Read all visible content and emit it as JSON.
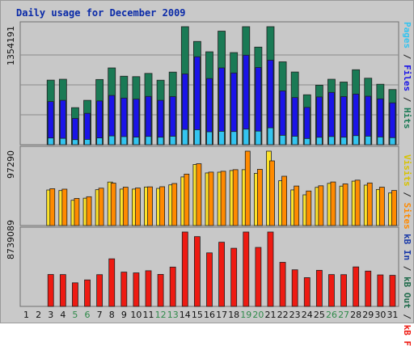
{
  "title": "Daily usage for December 2009",
  "panels": {
    "top": {
      "max_label": "1354191",
      "legend": [
        "Pages",
        "Files",
        "Hits"
      ]
    },
    "middle": {
      "max_label": "97290",
      "legend": [
        "Visits",
        "Sites"
      ]
    },
    "bottom": {
      "max_label": "8739089",
      "legend": [
        "kB In",
        "kB Out",
        "kB F"
      ]
    }
  },
  "colors": {
    "hits": "#1a7a55",
    "files": "#1a14e8",
    "pages": "#33c4f0",
    "visits": "#fde32a",
    "sites": "#ff8a00",
    "kb_f": "#ee1a12",
    "kb_out": "#1e6a4a",
    "kb_in": "#1a3aa8",
    "weekend_day": "#2f8a4a"
  },
  "chart_data": {
    "type": "bar",
    "title": "Daily usage for December 2009",
    "categories": [
      "1",
      "2",
      "3",
      "4",
      "5",
      "6",
      "7",
      "8",
      "9",
      "10",
      "11",
      "12",
      "13",
      "14",
      "15",
      "16",
      "17",
      "18",
      "19",
      "20",
      "21",
      "22",
      "23",
      "24",
      "25",
      "26",
      "27",
      "28",
      "29",
      "30",
      "31"
    ],
    "weekend_days": [
      "5",
      "6",
      "12",
      "13",
      "19",
      "20",
      "26",
      "27"
    ],
    "panels": [
      {
        "name": "top",
        "ylim": [
          0,
          1354191
        ],
        "series": [
          {
            "name": "Hits",
            "values": [
              0,
              0,
              741000,
              751000,
              425000,
              509000,
              748000,
              881000,
              786000,
              781000,
              818000,
              740000,
              833000,
              1374000,
              1185000,
              1066000,
              1303000,
              1057000,
              1393000,
              1120000,
              1412000,
              951000,
              834000,
              573000,
              683000,
              751000,
              719000,
              860000,
              763000,
              694000,
              633000
            ]
          },
          {
            "name": "Files",
            "values": [
              0,
              0,
              495000,
              509000,
              302000,
              360000,
              502000,
              565000,
              535000,
              523000,
              554000,
              509000,
              552000,
              812000,
              1009000,
              759000,
              881000,
              823000,
              1027000,
              886000,
              970000,
              617000,
              541000,
              428000,
              548000,
              600000,
              552000,
              581000,
              556000,
              526000,
              480000
            ]
          },
          {
            "name": "Pages",
            "values": [
              0,
              0,
              77000,
              73000,
              58000,
              61000,
              78000,
              101000,
              93000,
              87000,
              95000,
              86000,
              97000,
              175000,
              172000,
              148000,
              154000,
              151000,
              179000,
              156000,
              194000,
              108000,
              97000,
              71000,
              85000,
              94000,
              86000,
              104000,
              98000,
              89000,
              81000
            ]
          }
        ]
      },
      {
        "name": "middle",
        "ylim": [
          0,
          97290
        ],
        "series": [
          {
            "name": "Visits",
            "values": [
              0,
              0,
              46500,
              45800,
              33100,
              35800,
              46900,
              56900,
              47700,
              47700,
              50400,
              48600,
              53200,
              63600,
              79900,
              68800,
              69800,
              72000,
              73100,
              68300,
              99000,
              58600,
              46600,
              40200,
              50000,
              55200,
              51600,
              58100,
              52900,
              47200,
              42600
            ]
          },
          {
            "name": "Sites",
            "values": [
              0,
              0,
              48200,
              47600,
              35500,
              37700,
              48900,
              55500,
              50200,
              49100,
              50600,
              50800,
              55000,
              67300,
              80900,
              69900,
              71000,
              73100,
              99000,
              73600,
              84600,
              64500,
              51700,
              45200,
              52000,
              57000,
              54500,
              59400,
              55700,
              50200,
              45900
            ]
          }
        ]
      },
      {
        "name": "bottom",
        "ylim": [
          0,
          8739089
        ],
        "series": [
          {
            "name": "kB F",
            "values": [
              0,
              0,
              3750000,
              3740000,
              2770000,
              3110000,
              3730000,
              5590000,
              4030000,
              3940000,
              4190000,
              3760000,
              4620000,
              9020000,
              8200000,
              6290000,
              7540000,
              6830000,
              8950000,
              6930000,
              8950000,
              5180000,
              4300000,
              3380000,
              4240000,
              3740000,
              3730000,
              4640000,
              4150000,
              3700000,
              3650000
            ]
          },
          {
            "name": "kB Out",
            "values": []
          },
          {
            "name": "kB In",
            "values": []
          }
        ]
      }
    ]
  }
}
